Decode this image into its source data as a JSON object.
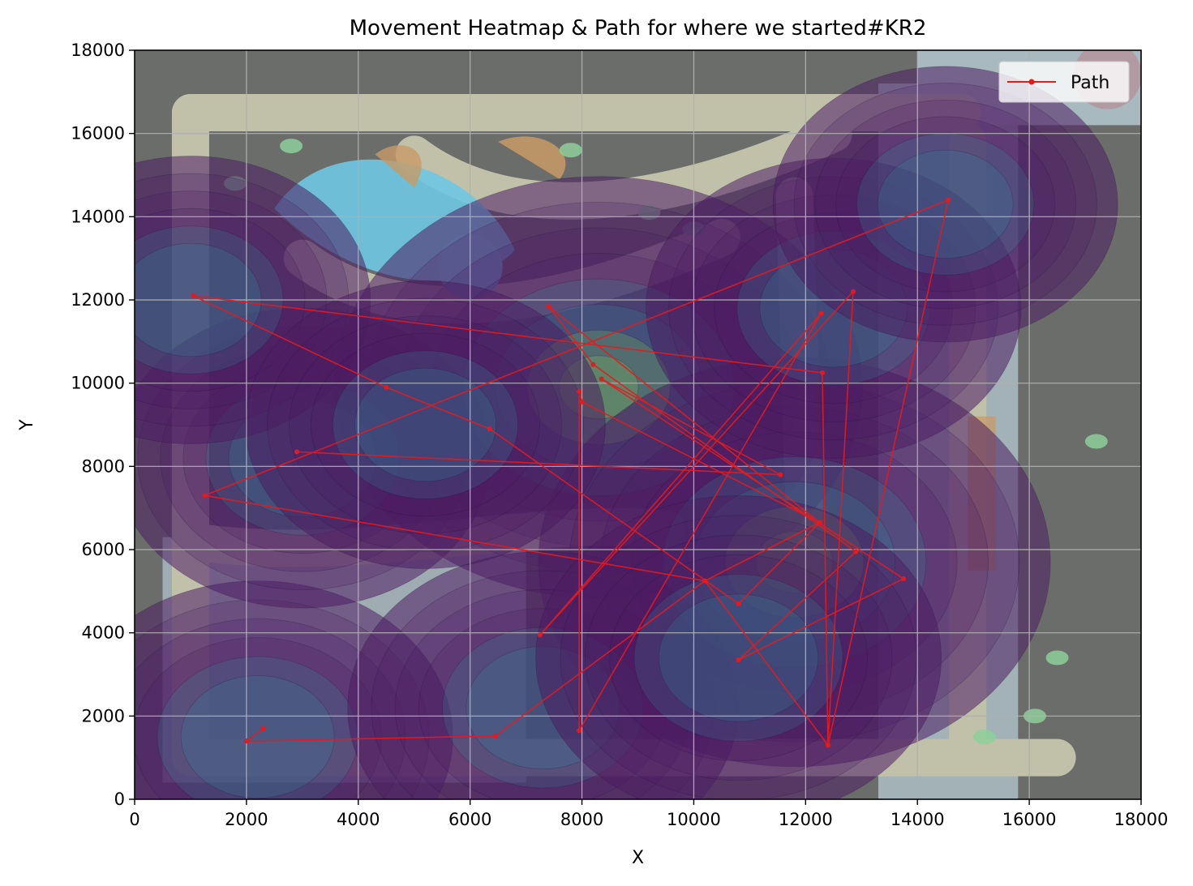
{
  "chart_data": {
    "type": "line",
    "title": "Movement Heatmap & Path for where we started#KR2",
    "xlabel": "X",
    "ylabel": "Y",
    "xlim": [
      0,
      18000
    ],
    "ylim": [
      0,
      18000
    ],
    "xticks": [
      0,
      2000,
      4000,
      6000,
      8000,
      10000,
      12000,
      14000,
      16000,
      18000
    ],
    "yticks": [
      0,
      2000,
      4000,
      6000,
      8000,
      10000,
      12000,
      14000,
      16000,
      18000
    ],
    "grid": true,
    "legend_position": "top-right",
    "background": "game map with density heatmap overlay",
    "series": [
      {
        "name": "Path",
        "color": "#e8191c",
        "marker": "dot",
        "points": [
          [
            2300,
            1700
          ],
          [
            2000,
            1400
          ],
          [
            6450,
            1520
          ],
          [
            10200,
            5250
          ],
          [
            12400,
            1300
          ],
          [
            12300,
            10250
          ],
          [
            1050,
            12100
          ],
          [
            4500,
            9900
          ],
          [
            6350,
            8900
          ],
          [
            10800,
            4700
          ],
          [
            12250,
            6650
          ],
          [
            8000,
            9550
          ],
          [
            7950,
            9800
          ],
          [
            7950,
            1650
          ],
          [
            12280,
            11680
          ],
          [
            7250,
            3950
          ],
          [
            12850,
            12200
          ],
          [
            12400,
            1300
          ],
          [
            14550,
            14400
          ],
          [
            1250,
            7300
          ],
          [
            10200,
            5250
          ],
          [
            12250,
            6650
          ],
          [
            7400,
            11850
          ],
          [
            8200,
            10450
          ],
          [
            12900,
            5950
          ],
          [
            10800,
            3350
          ],
          [
            13750,
            5300
          ],
          [
            8350,
            10100
          ],
          [
            11550,
            7800
          ],
          [
            2900,
            8350
          ]
        ]
      }
    ],
    "density_peaks": [
      {
        "x": 8300,
        "y": 9900,
        "weight": 1.0
      },
      {
        "x": 11800,
        "y": 5700,
        "weight": 0.95
      },
      {
        "x": 2200,
        "y": 1500,
        "weight": 0.55
      },
      {
        "x": 3000,
        "y": 8200,
        "weight": 0.5
      },
      {
        "x": 1000,
        "y": 12000,
        "weight": 0.45
      },
      {
        "x": 12500,
        "y": 11800,
        "weight": 0.5
      },
      {
        "x": 14500,
        "y": 14300,
        "weight": 0.4
      },
      {
        "x": 7300,
        "y": 2200,
        "weight": 0.55
      },
      {
        "x": 10800,
        "y": 3400,
        "weight": 0.6
      },
      {
        "x": 5200,
        "y": 9000,
        "weight": 0.45
      }
    ],
    "colors": {
      "map_bg": "#6b6d6a",
      "map_road": "#c1c1aa",
      "map_steel": "#a8b9bf",
      "map_water": "#6ec6e2",
      "map_orange": "#c89a66",
      "map_green": "#8dcf9a",
      "density_low": "#4c1d63",
      "density_mid": "#2f8a99",
      "density_high": "#8ad852",
      "path": "#e8191c",
      "grid": "#b0b0b0"
    }
  }
}
